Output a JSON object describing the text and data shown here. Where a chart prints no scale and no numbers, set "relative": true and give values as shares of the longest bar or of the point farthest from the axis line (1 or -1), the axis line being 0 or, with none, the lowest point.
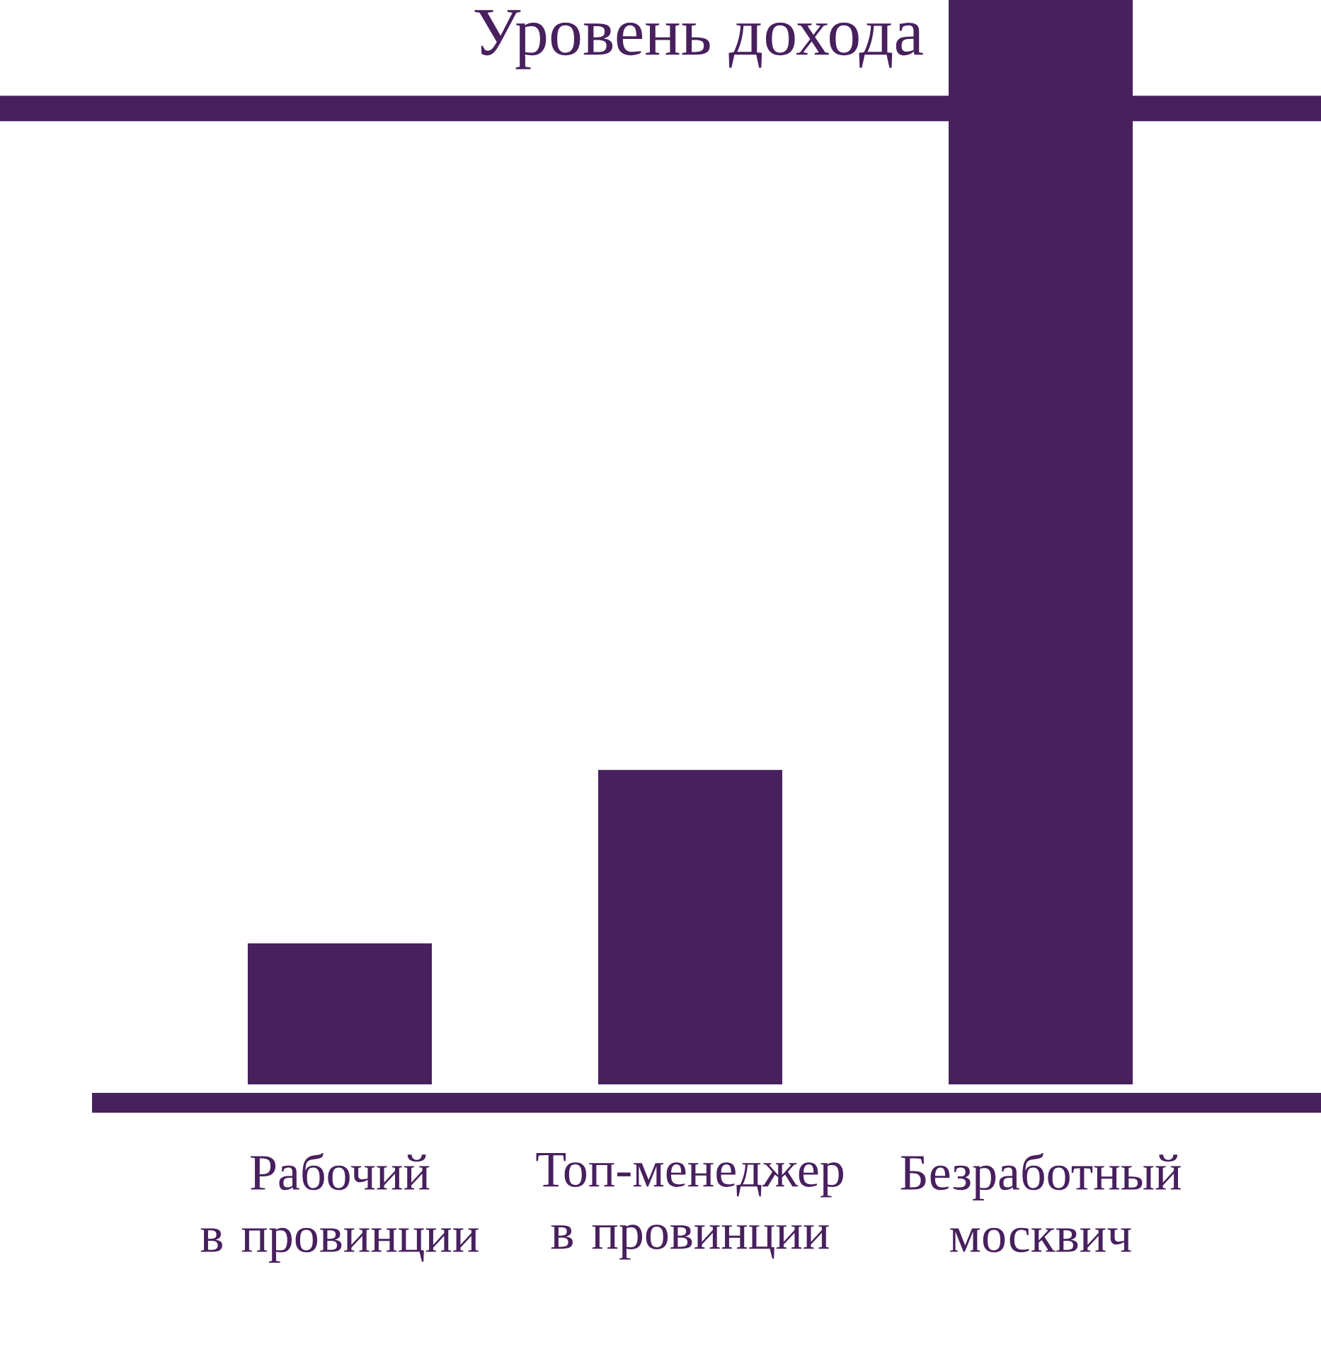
{
  "chart_data": {
    "type": "bar",
    "title": "Уровень дохода",
    "categories": [
      "Рабочий\nв провинции",
      "Топ-менеджер\nв провинции",
      "Безработный\nмосквич"
    ],
    "values": [
      0.13,
      0.29,
      1
    ],
    "color": "#48205e",
    "relative": true,
    "ref_lines": [
      {
        "axis": "y",
        "value": 0.9,
        "color": "#48205e"
      }
    ]
  }
}
